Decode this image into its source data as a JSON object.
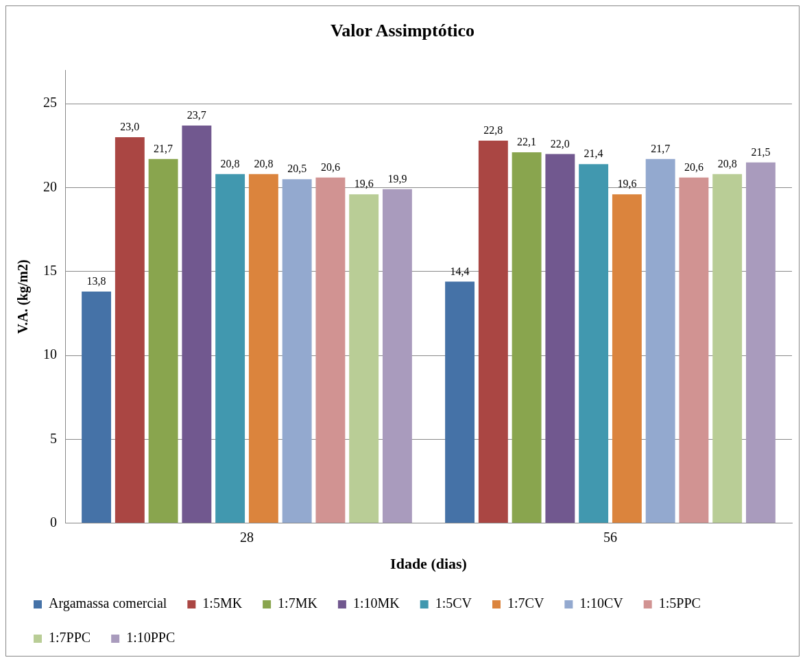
{
  "chart_data": {
    "type": "bar",
    "title": "Valor Assimptótico",
    "xlabel": "Idade (dias)",
    "ylabel": "V.A. (kg/m2)",
    "categories": [
      "28",
      "56"
    ],
    "series": [
      {
        "name": "Argamassa comercial",
        "color": "#4572a7",
        "values": [
          13.8,
          14.4
        ],
        "value_labels": [
          "13,8",
          "14,4"
        ]
      },
      {
        "name": "1:5MK",
        "color": "#aa4643",
        "values": [
          23.0,
          22.8
        ],
        "value_labels": [
          "23,0",
          "22,8"
        ]
      },
      {
        "name": "1:7MK",
        "color": "#89a54e",
        "values": [
          21.7,
          22.1
        ],
        "value_labels": [
          "21,7",
          "22,1"
        ]
      },
      {
        "name": "1:10MK",
        "color": "#71588f",
        "values": [
          23.7,
          22.0
        ],
        "value_labels": [
          "23,7",
          "22,0"
        ]
      },
      {
        "name": "1:5CV",
        "color": "#4198af",
        "values": [
          20.8,
          21.4
        ],
        "value_labels": [
          "20,8",
          "21,4"
        ]
      },
      {
        "name": "1:7CV",
        "color": "#db843d",
        "values": [
          20.8,
          19.6
        ],
        "value_labels": [
          "20,8",
          "19,6"
        ]
      },
      {
        "name": "1:10CV",
        "color": "#93a9cf",
        "values": [
          20.5,
          21.7
        ],
        "value_labels": [
          "20,5",
          "21,7"
        ]
      },
      {
        "name": "1:5PPC",
        "color": "#d19392",
        "values": [
          20.6,
          20.6
        ],
        "value_labels": [
          "20,6",
          "20,6"
        ]
      },
      {
        "name": "1:7PPC",
        "color": "#b9cd96",
        "values": [
          19.6,
          20.8
        ],
        "value_labels": [
          "19,6",
          "20,8"
        ]
      },
      {
        "name": "1:10PPC",
        "color": "#a99bbd",
        "values": [
          19.9,
          21.5
        ],
        "value_labels": [
          "19,9",
          "21,5"
        ]
      }
    ],
    "ylim": [
      0,
      27
    ],
    "yticks": [
      0,
      5,
      10,
      15,
      20,
      25
    ],
    "grid": "y",
    "legend": "bottom"
  }
}
